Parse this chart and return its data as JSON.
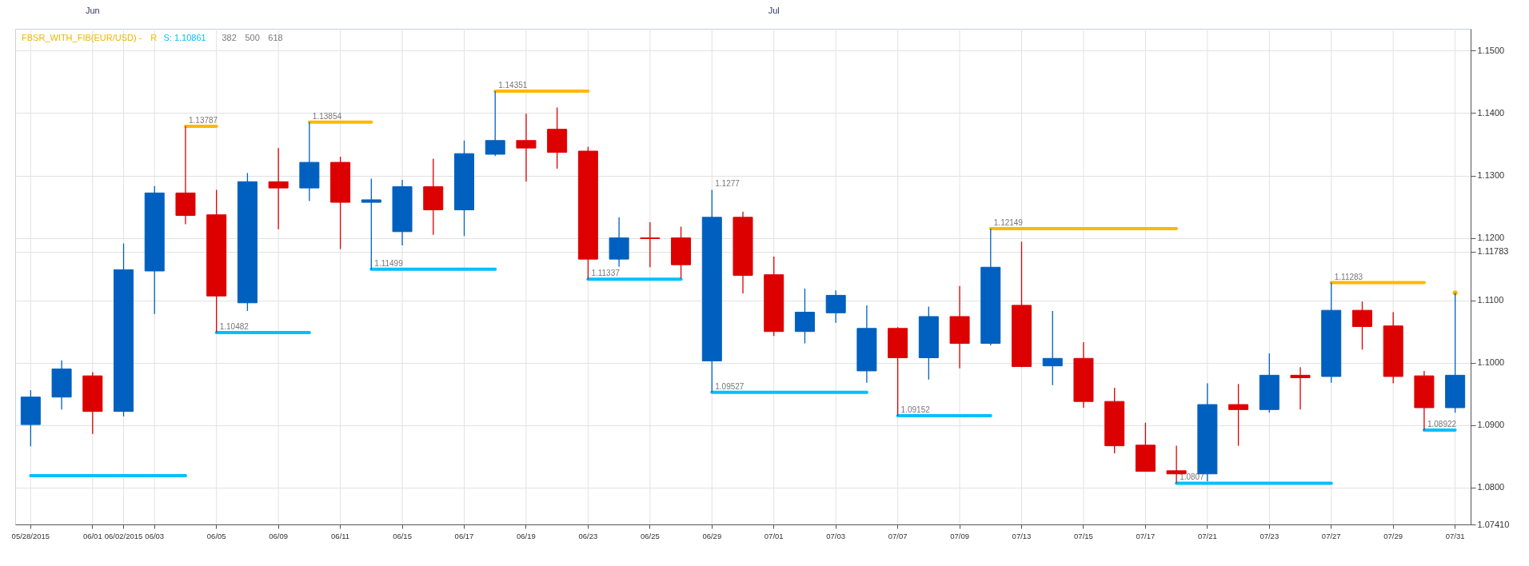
{
  "chart_data": {
    "type": "candlestick",
    "title": "FBSR_WITH_FIB(EUR/USD) -",
    "categories": [
      "05/28/2015",
      null,
      "06/01",
      "06/02/2015",
      "06/03",
      null,
      "06/05",
      null,
      "06/09",
      null,
      "06/11",
      null,
      "06/15",
      null,
      "06/17",
      null,
      "06/19",
      null,
      "06/23",
      null,
      "06/25",
      null,
      "06/29",
      null,
      "07/01",
      null,
      "07/03",
      null,
      "07/07",
      null,
      "07/09",
      null,
      "07/13",
      null,
      "07/15",
      null,
      "07/17",
      null,
      "07/21",
      null,
      "07/23",
      null,
      "07/27",
      null,
      "07/29",
      null,
      "07/31"
    ],
    "ohlc": [
      [
        1.0901,
        1.0956,
        1.0866,
        1.0945
      ],
      [
        1.0945,
        1.1004,
        1.0925,
        1.099
      ],
      [
        1.0979,
        1.0985,
        1.0886,
        1.0922
      ],
      [
        1.0922,
        1.1191,
        1.0914,
        1.1149
      ],
      [
        1.1147,
        1.1283,
        1.1078,
        1.1272
      ],
      [
        1.1272,
        1.13787,
        1.1222,
        1.1236
      ],
      [
        1.1237,
        1.1277,
        1.10482,
        1.1107
      ],
      [
        1.1096,
        1.1304,
        1.1083,
        1.129
      ],
      [
        1.129,
        1.1344,
        1.1214,
        1.128
      ],
      [
        1.128,
        1.13854,
        1.1259,
        1.1321
      ],
      [
        1.1321,
        1.133,
        1.1182,
        1.1257
      ],
      [
        1.1257,
        1.1295,
        1.11499,
        1.1261
      ],
      [
        1.121,
        1.1293,
        1.1188,
        1.1282
      ],
      [
        1.1282,
        1.1327,
        1.1205,
        1.1245
      ],
      [
        1.1245,
        1.1356,
        1.1203,
        1.1335
      ],
      [
        1.1334,
        1.14351,
        1.1331,
        1.1356
      ],
      [
        1.1356,
        1.1399,
        1.129,
        1.1344
      ],
      [
        1.1374,
        1.1409,
        1.1311,
        1.1337
      ],
      [
        1.1339,
        1.1346,
        1.11337,
        1.1166
      ],
      [
        1.1166,
        1.1233,
        1.1154,
        1.12
      ],
      [
        1.12,
        1.1225,
        1.1153,
        1.1199
      ],
      [
        1.12,
        1.1218,
        1.1135,
        1.1157
      ],
      [
        1.1003,
        1.1277,
        1.09527,
        1.1233
      ],
      [
        1.1233,
        1.1242,
        1.1111,
        1.114
      ],
      [
        1.1141,
        1.117,
        1.1043,
        1.105
      ],
      [
        1.105,
        1.1119,
        1.1031,
        1.1081
      ],
      [
        1.108,
        1.1116,
        1.1064,
        1.1108
      ],
      [
        1.0987,
        1.1092,
        1.0968,
        1.1055
      ],
      [
        1.1055,
        1.1057,
        1.09152,
        1.1008
      ],
      [
        1.1008,
        1.109,
        1.0973,
        1.1074
      ],
      [
        1.1074,
        1.1123,
        1.0991,
        1.1031
      ],
      [
        1.1031,
        1.12149,
        1.1028,
        1.1153
      ],
      [
        1.1092,
        1.1194,
        1.0993,
        1.0994
      ],
      [
        1.0995,
        1.1083,
        1.0964,
        1.1007
      ],
      [
        1.1007,
        1.1033,
        1.0928,
        1.0938
      ],
      [
        1.0938,
        1.096,
        1.0855,
        1.0867
      ],
      [
        1.0868,
        1.0904,
        1.0826,
        1.0826
      ],
      [
        1.0827,
        1.0867,
        1.0807,
        1.0822
      ],
      [
        1.0822,
        1.0967,
        1.081,
        1.0933
      ],
      [
        1.0933,
        1.0966,
        1.0867,
        1.0925
      ],
      [
        1.0925,
        1.1015,
        1.092,
        1.098
      ],
      [
        1.098,
        1.0993,
        1.0925,
        1.0976
      ],
      [
        1.0978,
        1.11283,
        1.0968,
        1.1084
      ],
      [
        1.1084,
        1.1098,
        1.1021,
        1.1058
      ],
      [
        1.1059,
        1.1081,
        1.0967,
        1.0978
      ],
      [
        1.0979,
        1.0987,
        1.08922,
        1.0928
      ],
      [
        1.0928,
        1.1112,
        1.092,
        1.098
      ]
    ],
    "colors": [
      "#0060bf",
      "#0060bf",
      "#dd0000",
      "#0060bf",
      "#0060bf",
      "#dd0000",
      "#dd0000",
      "#0060bf",
      "#dd0000",
      "#0060bf",
      "#dd0000",
      "#0060bf",
      "#0060bf",
      "#dd0000",
      "#0060bf",
      "#0060bf",
      "#dd0000",
      "#dd0000",
      "#dd0000",
      "#0060bf",
      "#dd0000",
      "#dd0000",
      "#0060bf",
      "#dd0000",
      "#dd0000",
      "#0060bf",
      "#0060bf",
      "#0060bf",
      "#dd0000",
      "#0060bf",
      "#dd0000",
      "#0060bf",
      "#dd0000",
      "#0060bf",
      "#dd0000",
      "#dd0000",
      "#dd0000",
      "#dd0000",
      "#0060bf",
      "#dd0000",
      "#0060bf",
      "#dd0000",
      "#0060bf",
      "#dd0000",
      "#dd0000",
      "#dd0000",
      "#0060bf"
    ],
    "series": [
      {
        "type": "line",
        "name": "R",
        "color": "#ffb800",
        "values": [
          null,
          null,
          null,
          null,
          null,
          1.13787,
          1.13787,
          null,
          null,
          null,
          null,
          null,
          null,
          null,
          null,
          null,
          null,
          null,
          null,
          null,
          null,
          null,
          null,
          null,
          null,
          null,
          null,
          null,
          null,
          null,
          null,
          null,
          null,
          null,
          null,
          null,
          null,
          null,
          null,
          null,
          null,
          null,
          null,
          null,
          null,
          null,
          null
        ],
        "value_labels": [
          null,
          null,
          null,
          null,
          null,
          "1.13787",
          null,
          null,
          null,
          null,
          null,
          null,
          null,
          null,
          null,
          null,
          null,
          null,
          null,
          null,
          null,
          null,
          null,
          null,
          null,
          null,
          null,
          null,
          null,
          null,
          null,
          null,
          null,
          null,
          null,
          null,
          null,
          null,
          null,
          null,
          null,
          null,
          null,
          null,
          null,
          null,
          null
        ]
      },
      {
        "type": "line",
        "color": "#ffb800",
        "values": [
          null,
          null,
          null,
          null,
          null,
          null,
          null,
          null,
          null,
          1.13854,
          1.13854,
          1.13854,
          null,
          null,
          null,
          null,
          null,
          null,
          null,
          null,
          null,
          null,
          null,
          null,
          null,
          null,
          null,
          null,
          null,
          null,
          null,
          null,
          null,
          null,
          null,
          null,
          null,
          null,
          null,
          null,
          null,
          null,
          null,
          null,
          null,
          null,
          null
        ],
        "value_labels": [
          null,
          null,
          null,
          null,
          null,
          null,
          null,
          null,
          null,
          "1.13854",
          null,
          null,
          null,
          null,
          null,
          null,
          null,
          null,
          null,
          null,
          null,
          null,
          null,
          null,
          null,
          null,
          null,
          null,
          null,
          null,
          null,
          null,
          null,
          null,
          null,
          null,
          null,
          null,
          null,
          null,
          null,
          null,
          null,
          null,
          null,
          null,
          null
        ]
      },
      {
        "type": "line",
        "color": "#ffb800",
        "values": [
          null,
          null,
          null,
          null,
          null,
          null,
          null,
          null,
          null,
          null,
          null,
          null,
          null,
          null,
          null,
          1.14351,
          1.14351,
          1.14351,
          1.14351,
          null,
          null,
          null,
          null,
          null,
          null,
          null,
          null,
          null,
          null,
          null,
          null,
          null,
          null,
          null,
          null,
          null,
          null,
          null,
          null,
          null,
          null,
          null,
          null,
          null,
          null,
          null,
          null
        ],
        "value_labels": [
          null,
          null,
          null,
          null,
          null,
          null,
          null,
          null,
          null,
          null,
          null,
          null,
          null,
          null,
          null,
          "1.14351",
          null,
          null,
          null,
          null,
          null,
          null,
          null,
          null,
          null,
          null,
          null,
          null,
          null,
          null,
          null,
          null,
          null,
          null,
          null,
          null,
          null,
          null,
          null,
          null,
          null,
          null,
          null,
          null,
          null,
          null,
          null
        ]
      },
      {
        "type": "line",
        "color": "#ffb800",
        "values": [
          null,
          null,
          null,
          null,
          null,
          null,
          null,
          null,
          null,
          null,
          null,
          null,
          null,
          null,
          null,
          null,
          null,
          null,
          null,
          null,
          null,
          null,
          null,
          null,
          null,
          null,
          null,
          null,
          null,
          null,
          null,
          1.12149,
          1.12149,
          1.12149,
          1.12149,
          1.12149,
          1.12149,
          1.12149,
          null,
          null,
          null,
          null,
          null,
          null,
          null,
          null,
          null
        ],
        "value_labels": [
          null,
          null,
          null,
          null,
          null,
          null,
          null,
          null,
          null,
          null,
          null,
          null,
          null,
          null,
          null,
          null,
          null,
          null,
          null,
          null,
          null,
          null,
          null,
          null,
          null,
          null,
          null,
          null,
          null,
          null,
          null,
          "1.12149",
          null,
          null,
          null,
          null,
          null,
          null,
          null,
          null,
          null,
          null,
          null,
          null,
          null,
          null,
          null
        ]
      },
      {
        "type": "line",
        "color": "#ffb800",
        "values": [
          null,
          null,
          null,
          null,
          null,
          null,
          null,
          null,
          null,
          null,
          null,
          null,
          null,
          null,
          null,
          null,
          null,
          null,
          null,
          null,
          null,
          null,
          null,
          null,
          null,
          null,
          null,
          null,
          null,
          null,
          null,
          null,
          null,
          null,
          null,
          null,
          null,
          null,
          null,
          null,
          null,
          null,
          1.11283,
          1.11283,
          1.11283,
          1.11283,
          null
        ],
        "value_labels": [
          null,
          null,
          null,
          null,
          null,
          null,
          null,
          null,
          null,
          null,
          null,
          null,
          null,
          null,
          null,
          null,
          null,
          null,
          null,
          null,
          null,
          null,
          null,
          null,
          null,
          null,
          null,
          null,
          null,
          null,
          null,
          null,
          null,
          null,
          null,
          null,
          null,
          null,
          null,
          null,
          null,
          null,
          "1.11283",
          null,
          null,
          null,
          null
        ]
      },
      {
        "type": "scatter",
        "marker": "circle",
        "color": "#ffb800",
        "values": [
          null,
          null,
          null,
          null,
          null,
          null,
          null,
          null,
          null,
          null,
          null,
          null,
          null,
          null,
          null,
          null,
          null,
          null,
          null,
          null,
          null,
          null,
          null,
          null,
          null,
          null,
          null,
          null,
          null,
          null,
          null,
          null,
          null,
          null,
          null,
          null,
          null,
          null,
          null,
          null,
          null,
          null,
          null,
          null,
          null,
          null,
          1.1112
        ]
      },
      {
        "type": "line",
        "name": "S: 1.10861",
        "color": "#00bfff",
        "values": [
          1.0819,
          1.0819,
          1.0819,
          1.0819,
          1.0819,
          1.0819,
          null,
          null,
          null,
          null,
          null,
          null,
          null,
          null,
          null,
          null,
          null,
          null,
          null,
          null,
          null,
          null,
          null,
          null,
          null,
          null,
          null,
          null,
          null,
          null,
          null,
          null,
          null,
          null,
          null,
          null,
          null,
          null,
          null,
          null,
          null,
          null,
          null,
          null,
          null,
          null,
          null
        ]
      },
      {
        "type": "line",
        "color": "#00bfff",
        "values": [
          null,
          null,
          null,
          null,
          null,
          null,
          1.10482,
          1.10482,
          1.10482,
          1.10482,
          null,
          null,
          null,
          null,
          null,
          null,
          null,
          null,
          null,
          null,
          null,
          null,
          null,
          null,
          null,
          null,
          null,
          null,
          null,
          null,
          null,
          null,
          null,
          null,
          null,
          null,
          null,
          null,
          null,
          null,
          null,
          null,
          null,
          null,
          null,
          null,
          null
        ],
        "value_labels": [
          null,
          null,
          null,
          null,
          null,
          null,
          "1.10482",
          null,
          null,
          null,
          null,
          null,
          null,
          null,
          null,
          null,
          null,
          null,
          null,
          null,
          null,
          null,
          null,
          null,
          null,
          null,
          null,
          null,
          null,
          null,
          null,
          null,
          null,
          null,
          null,
          null,
          null,
          null,
          null,
          null,
          null,
          null,
          null,
          null,
          null,
          null,
          null
        ]
      },
      {
        "type": "line",
        "color": "#00bfff",
        "values": [
          null,
          null,
          null,
          null,
          null,
          null,
          null,
          null,
          null,
          null,
          null,
          1.11499,
          1.11499,
          1.11499,
          1.11499,
          1.11499,
          null,
          null,
          null,
          null,
          null,
          null,
          null,
          null,
          null,
          null,
          null,
          null,
          null,
          null,
          null,
          null,
          null,
          null,
          null,
          null,
          null,
          null,
          null,
          null,
          null,
          null,
          null,
          null,
          null,
          null,
          null
        ],
        "value_labels": [
          null,
          null,
          null,
          null,
          null,
          null,
          null,
          null,
          null,
          null,
          null,
          "1.11499",
          null,
          null,
          null,
          null,
          null,
          null,
          null,
          null,
          null,
          null,
          null,
          null,
          null,
          null,
          null,
          null,
          null,
          null,
          null,
          null,
          null,
          null,
          null,
          null,
          null,
          null,
          null,
          null,
          null,
          null,
          null,
          null,
          null,
          null,
          null
        ]
      },
      {
        "type": "line",
        "color": "#00bfff",
        "values": [
          null,
          null,
          null,
          null,
          null,
          null,
          null,
          null,
          null,
          null,
          null,
          null,
          null,
          null,
          null,
          null,
          null,
          null,
          1.11337,
          1.11337,
          1.11337,
          1.11337,
          null,
          null,
          null,
          null,
          null,
          null,
          null,
          null,
          null,
          null,
          null,
          null,
          null,
          null,
          null,
          null,
          null,
          null,
          null,
          null,
          null,
          null,
          null,
          null,
          null
        ],
        "value_labels": [
          null,
          null,
          null,
          null,
          null,
          null,
          null,
          null,
          null,
          null,
          null,
          null,
          null,
          null,
          null,
          null,
          null,
          null,
          "1.11337",
          null,
          null,
          null,
          null,
          null,
          null,
          null,
          null,
          null,
          null,
          null,
          null,
          null,
          null,
          null,
          null,
          null,
          null,
          null,
          null,
          null,
          null,
          null,
          null,
          null,
          null,
          null,
          null
        ]
      },
      {
        "type": "line",
        "color": "#00bfff",
        "values": [
          null,
          null,
          null,
          null,
          null,
          null,
          null,
          null,
          null,
          null,
          null,
          null,
          null,
          null,
          null,
          null,
          null,
          null,
          null,
          null,
          null,
          null,
          1.09527,
          1.09527,
          1.09527,
          1.09527,
          1.09527,
          1.09527,
          null,
          null,
          null,
          null,
          null,
          null,
          null,
          null,
          null,
          null,
          null,
          null,
          null,
          null,
          null,
          null,
          null,
          null,
          null
        ],
        "value_labels": [
          null,
          null,
          null,
          null,
          null,
          null,
          null,
          null,
          null,
          null,
          null,
          null,
          null,
          null,
          null,
          null,
          null,
          null,
          null,
          null,
          null,
          null,
          "1.09527",
          null,
          null,
          null,
          null,
          null,
          null,
          null,
          null,
          null,
          null,
          null,
          null,
          null,
          null,
          null,
          null,
          null,
          null,
          null,
          null,
          null,
          null,
          null,
          null
        ]
      },
      {
        "type": "line",
        "color": "#00bfff",
        "values": [
          null,
          null,
          null,
          null,
          null,
          null,
          null,
          null,
          null,
          null,
          null,
          null,
          null,
          null,
          null,
          null,
          null,
          null,
          null,
          null,
          null,
          null,
          null,
          null,
          null,
          null,
          null,
          null,
          1.09152,
          1.09152,
          1.09152,
          1.09152,
          null,
          null,
          null,
          null,
          null,
          null,
          null,
          null,
          null,
          null,
          null,
          null,
          null,
          null,
          null
        ],
        "value_labels": [
          null,
          null,
          null,
          null,
          null,
          null,
          null,
          null,
          null,
          null,
          null,
          null,
          null,
          null,
          null,
          null,
          null,
          null,
          null,
          null,
          null,
          null,
          null,
          null,
          null,
          null,
          null,
          null,
          "1.09152",
          null,
          null,
          null,
          null,
          null,
          null,
          null,
          null,
          null,
          null,
          null,
          null,
          null,
          null,
          null,
          null,
          null,
          null
        ]
      },
      {
        "type": "line",
        "color": "#00bfff",
        "values": [
          null,
          null,
          null,
          null,
          null,
          null,
          null,
          null,
          null,
          null,
          null,
          null,
          null,
          null,
          null,
          null,
          null,
          null,
          null,
          null,
          null,
          null,
          null,
          null,
          null,
          null,
          null,
          null,
          null,
          null,
          null,
          null,
          null,
          null,
          null,
          null,
          null,
          1.0807,
          1.0807,
          1.0807,
          1.0807,
          1.0807,
          1.0807,
          null,
          null,
          null,
          null
        ],
        "value_labels": [
          null,
          null,
          null,
          null,
          null,
          null,
          null,
          null,
          null,
          null,
          null,
          null,
          null,
          null,
          null,
          null,
          null,
          null,
          null,
          null,
          null,
          null,
          null,
          null,
          null,
          null,
          null,
          null,
          null,
          null,
          null,
          null,
          null,
          null,
          null,
          null,
          null,
          "1.0807",
          null,
          null,
          null,
          null,
          null,
          null,
          null,
          null,
          null
        ]
      },
      {
        "type": "line",
        "color": "#00bfff",
        "values": [
          null,
          null,
          null,
          null,
          null,
          null,
          null,
          null,
          null,
          null,
          null,
          null,
          null,
          null,
          null,
          null,
          null,
          null,
          null,
          null,
          null,
          null,
          null,
          null,
          null,
          null,
          null,
          null,
          null,
          null,
          null,
          null,
          null,
          null,
          null,
          null,
          null,
          null,
          null,
          null,
          null,
          null,
          null,
          null,
          null,
          1.08922,
          1.08922
        ],
        "value_labels": [
          null,
          null,
          null,
          null,
          null,
          null,
          null,
          null,
          null,
          null,
          null,
          null,
          null,
          null,
          null,
          null,
          null,
          null,
          null,
          null,
          null,
          null,
          null,
          null,
          null,
          null,
          null,
          null,
          null,
          null,
          null,
          null,
          null,
          null,
          null,
          null,
          null,
          null,
          null,
          null,
          null,
          null,
          null,
          null,
          null,
          "1.08922",
          null
        ]
      }
    ],
    "annotations": [
      "382",
      "500",
      "618",
      "Jun",
      "Jul",
      {
        "text": "1.1277",
        "x": "06/29",
        "y": 1.1277
      }
    ],
    "ylim": [
      1.0741,
      1.1535
    ],
    "yticks": [
      {
        "value": 1.08,
        "label": "1.0800"
      },
      {
        "value": 1.09,
        "label": "1.0900"
      },
      {
        "value": 1.1,
        "label": "1.1000"
      },
      {
        "value": 1.11,
        "label": "1.1100"
      },
      {
        "value": 1.12,
        "label": "1.1200"
      },
      {
        "value": 1.13,
        "label": "1.1300"
      },
      {
        "value": 1.14,
        "label": "1.1400"
      },
      {
        "value": 1.15,
        "label": "1.1500"
      },
      {
        "value": 1.11783,
        "label": "1.11783"
      },
      {
        "value": 1.0741,
        "label": "1.07410"
      }
    ],
    "grid": true,
    "legend": "top left"
  }
}
